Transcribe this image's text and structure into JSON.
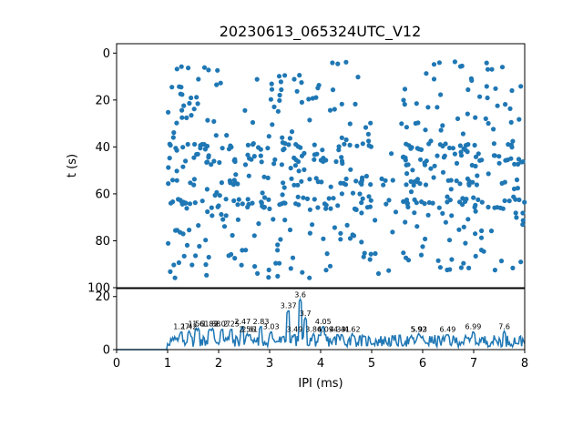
{
  "chart_data": [
    {
      "type": "scatter",
      "title": "20230613_065324UTC_V12",
      "ylabel": "t (s)",
      "xlabel": "",
      "xlim": [
        0,
        8
      ],
      "ylim": [
        100,
        -4
      ],
      "y_ticks": [
        "0",
        "20",
        "40",
        "60",
        "80",
        "100"
      ],
      "y_tick_values": [
        0,
        20,
        40,
        60,
        80,
        100
      ],
      "color": "#1f77b4",
      "grid": false,
      "n_points": 620
    },
    {
      "type": "line",
      "title": "",
      "xlabel": "IPI (ms)",
      "ylabel": "",
      "xlim": [
        0,
        8
      ],
      "ylim": [
        0,
        23
      ],
      "x_ticks": [
        "0",
        "1",
        "2",
        "3",
        "4",
        "5",
        "6",
        "7",
        "8"
      ],
      "x_tick_values": [
        0,
        1,
        2,
        3,
        4,
        5,
        6,
        7,
        8
      ],
      "y_ticks": [
        "0",
        "20"
      ],
      "y_tick_values": [
        0,
        20
      ],
      "color": "#1f77b4",
      "grid": false,
      "peaks": [
        {
          "x": 1.27,
          "y": 7,
          "label": "1.27"
        },
        {
          "x": 1.42,
          "y": 7,
          "label": "1.42"
        },
        {
          "x": 1.56,
          "y": 8,
          "label": "1.56"
        },
        {
          "x": 1.6,
          "y": 8,
          "label": "1.6"
        },
        {
          "x": 1.83,
          "y": 8,
          "label": "1.83"
        },
        {
          "x": 1.88,
          "y": 8,
          "label": "1.88"
        },
        {
          "x": 2.07,
          "y": 8,
          "label": "2.07"
        },
        {
          "x": 2.25,
          "y": 8,
          "label": "2.25"
        },
        {
          "x": 2.47,
          "y": 9,
          "label": "2.47"
        },
        {
          "x": 2.56,
          "y": 6,
          "label": "2.56"
        },
        {
          "x": 2.61,
          "y": 6,
          "label": "2.61"
        },
        {
          "x": 2.83,
          "y": 9,
          "label": "2.83"
        },
        {
          "x": 3.03,
          "y": 7,
          "label": "3.03"
        },
        {
          "x": 3.37,
          "y": 15,
          "label": "3.37"
        },
        {
          "x": 3.49,
          "y": 6,
          "label": "3.49"
        },
        {
          "x": 3.6,
          "y": 19,
          "label": "3.6"
        },
        {
          "x": 3.7,
          "y": 12,
          "label": "3.7"
        },
        {
          "x": 3.86,
          "y": 6,
          "label": "3.86"
        },
        {
          "x": 4.05,
          "y": 9,
          "label": "4.05"
        },
        {
          "x": 4.09,
          "y": 6,
          "label": "4.09"
        },
        {
          "x": 4.33,
          "y": 6,
          "label": "4.33"
        },
        {
          "x": 4.41,
          "y": 6,
          "label": "4.41"
        },
        {
          "x": 4.62,
          "y": 6,
          "label": "4.62"
        },
        {
          "x": 5.92,
          "y": 6,
          "label": "5.92"
        },
        {
          "x": 5.93,
          "y": 6,
          "label": "5.93"
        },
        {
          "x": 6.49,
          "y": 6,
          "label": "6.49"
        },
        {
          "x": 6.99,
          "y": 7,
          "label": "6.99"
        },
        {
          "x": 7.6,
          "y": 7,
          "label": "7.6"
        }
      ]
    }
  ]
}
